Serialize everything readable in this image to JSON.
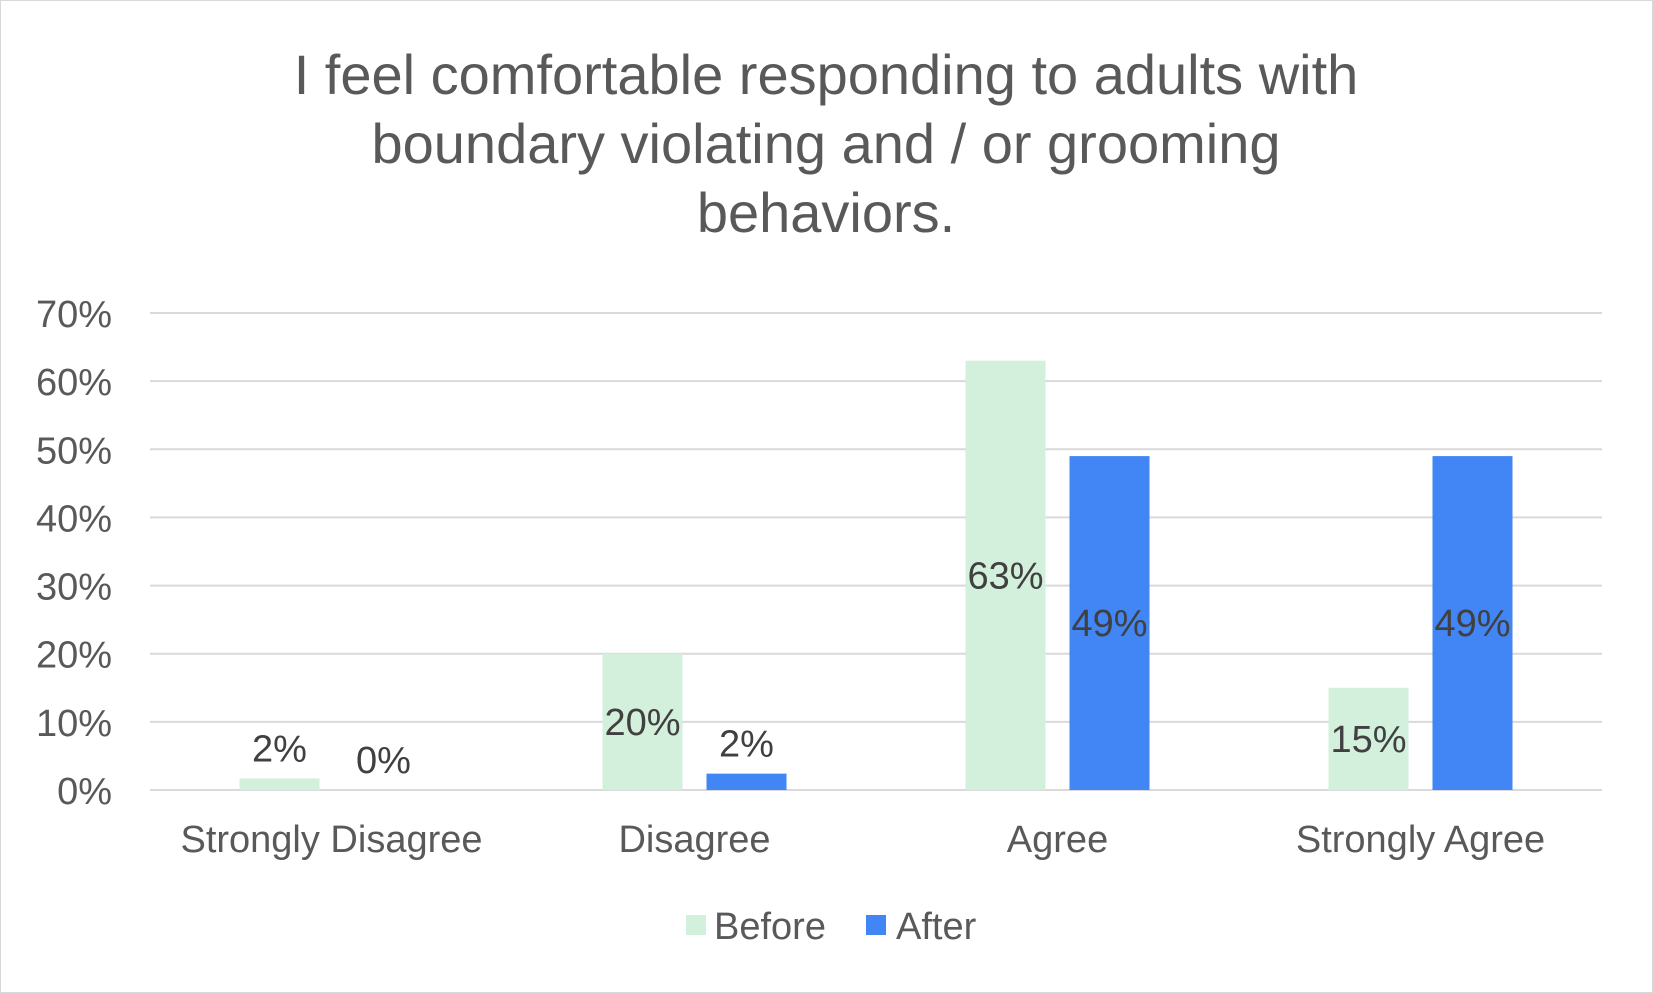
{
  "chart_data": {
    "type": "bar",
    "title_lines": [
      "I feel comfortable responding to adults with",
      "boundary violating and / or grooming",
      "behaviors."
    ],
    "categories": [
      "Strongly Disagree",
      "Disagree",
      "Agree",
      "Strongly Agree"
    ],
    "series": [
      {
        "name": "Before",
        "color": "#d3f0dc",
        "values": [
          0.017,
          0.2,
          0.63,
          0.15
        ],
        "labels": [
          "2%",
          "20%",
          "63%",
          "15%"
        ]
      },
      {
        "name": "After",
        "color": "#4285f4",
        "values": [
          0,
          0.024,
          0.49,
          0.49
        ],
        "labels": [
          "0%",
          "2%",
          "49%",
          "49%"
        ]
      }
    ],
    "ylim": [
      0,
      0.7
    ],
    "yticks": [
      0,
      0.1,
      0.2,
      0.3,
      0.4,
      0.5,
      0.6,
      0.7
    ],
    "ytick_labels": [
      "0%",
      "10%",
      "20%",
      "30%",
      "40%",
      "50%",
      "60%",
      "70%"
    ],
    "grid": true,
    "legend": "bottom",
    "text_color": "#595959",
    "label_color": "#404040",
    "grid_color": "#d9d9d9"
  }
}
